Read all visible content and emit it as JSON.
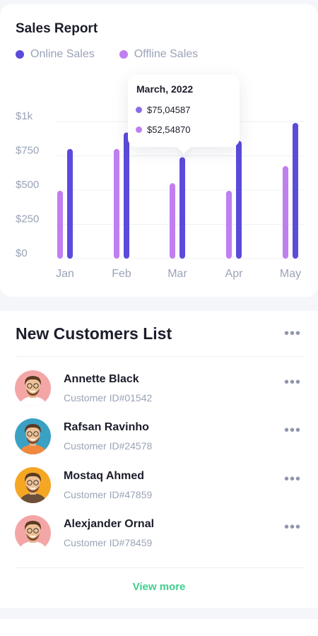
{
  "sales_report": {
    "title": "Sales Report",
    "legend": [
      {
        "label": "Online Sales",
        "color": "#5b4bdb"
      },
      {
        "label": "Offline Sales",
        "color": "#c07ef1"
      }
    ],
    "tooltip": {
      "title": "March, 2022",
      "online_value": "$75,04587",
      "offline_value": "$52,54870"
    }
  },
  "chart_data": {
    "type": "bar",
    "categories": [
      "Jan",
      "Feb",
      "Mar",
      "Apr",
      "May"
    ],
    "series": [
      {
        "name": "Online Sales",
        "color": "#5b4bdb",
        "values": [
          800,
          920,
          740,
          860,
          990
        ]
      },
      {
        "name": "Offline Sales",
        "color": "#c07ef1",
        "values": [
          495,
          800,
          550,
          495,
          675
        ]
      }
    ],
    "y_ticks": [
      {
        "value": 0,
        "label": "$0"
      },
      {
        "value": 250,
        "label": "$250"
      },
      {
        "value": 500,
        "label": "$500"
      },
      {
        "value": 750,
        "label": "$750"
      },
      {
        "value": 1000,
        "label": "$1k"
      }
    ],
    "ylim": [
      0,
      1000
    ],
    "grid": true,
    "legend_position": "top-left"
  },
  "customers": {
    "title": "New Customers List",
    "items": [
      {
        "name": "Annette Black",
        "id": "Customer ID#01542",
        "avatar_bg": "#f4a6a6",
        "shirt": "#ffffff"
      },
      {
        "name": "Rafsan Ravinho",
        "id": "Customer ID#24578",
        "avatar_bg": "#3aa0c4",
        "shirt": "#f0883e"
      },
      {
        "name": "Mostaq Ahmed",
        "id": "Customer ID#47859",
        "avatar_bg": "#f5a623",
        "shirt": "#6b4f3a"
      },
      {
        "name": "Alexjander Ornal",
        "id": "Customer ID#78459",
        "avatar_bg": "#f4a6a6",
        "shirt": "#ffffff"
      }
    ],
    "view_more": "View more"
  }
}
